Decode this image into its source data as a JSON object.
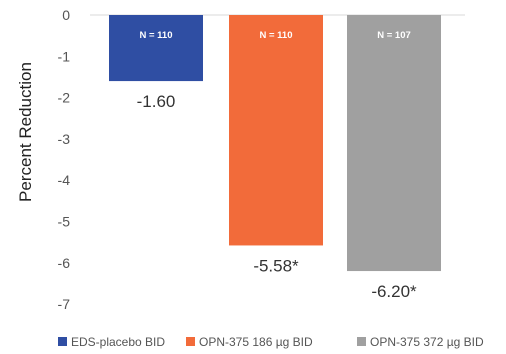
{
  "chart_data": {
    "type": "bar",
    "ylabel": "Percent Reduction",
    "ylim": [
      -7,
      0
    ],
    "yticks": [
      "0",
      "-1",
      "-2",
      "-3",
      "-4",
      "-5",
      "-6",
      "-7"
    ],
    "grid": false,
    "legend_position": "bottom",
    "categories": [
      "EDS-placebo BID",
      "OPN-375 186 µg BID",
      "OPN-375 372 µg BID"
    ],
    "values": [
      -1.6,
      -5.58,
      -6.2
    ],
    "value_labels": [
      "-1.60",
      "-5.58*",
      "-6.20*"
    ],
    "n_labels": [
      "N = 110",
      "N = 110",
      "N = 107"
    ],
    "colors": [
      "#2f4ea3",
      "#f26b3a",
      "#a0a0a0"
    ]
  }
}
